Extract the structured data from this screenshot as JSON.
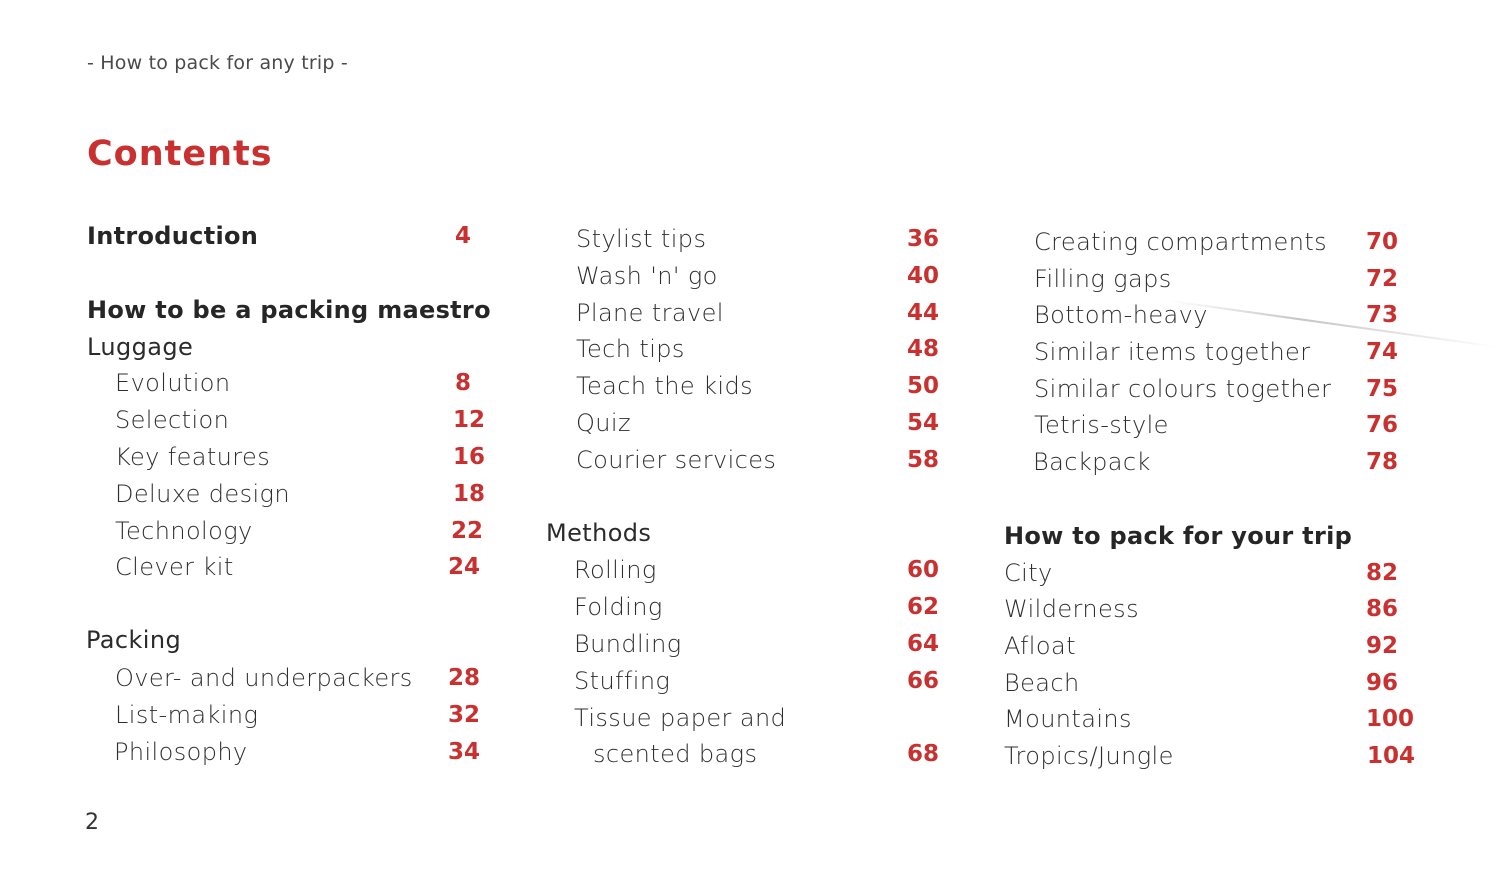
{
  "running_head": "- How to pack for any trip -",
  "title": "Contents",
  "folio": "2",
  "col1": {
    "introduction": {
      "label": "Introduction",
      "page": "4"
    },
    "maestro_heading": "How to be a packing maestro",
    "luggage_heading": "Luggage",
    "luggage_items": [
      {
        "label": "Evolution",
        "page": "8"
      },
      {
        "label": "Selection",
        "page": "12"
      },
      {
        "label": "Key features",
        "page": "16"
      },
      {
        "label": "Deluxe design",
        "page": "18"
      },
      {
        "label": "Technology",
        "page": "22"
      },
      {
        "label": "Clever kit",
        "page": "24"
      }
    ],
    "packing_heading": "Packing",
    "packing_items": [
      {
        "label": "Over- and underpackers",
        "page": "28"
      },
      {
        "label": "List-making",
        "page": "32"
      },
      {
        "label": "Philosophy",
        "page": "34"
      }
    ]
  },
  "col2": {
    "items": [
      {
        "label": "Stylist tips",
        "page": "36"
      },
      {
        "label": "Wash 'n' go",
        "page": "40"
      },
      {
        "label": "Plane travel",
        "page": "44"
      },
      {
        "label": "Tech tips",
        "page": "48"
      },
      {
        "label": "Teach the kids",
        "page": "50"
      },
      {
        "label": "Quiz",
        "page": "54"
      },
      {
        "label": "Courier services",
        "page": "58"
      }
    ],
    "methods_heading": "Methods",
    "methods_items": [
      {
        "label": "Rolling",
        "page": "60"
      },
      {
        "label": "Folding",
        "page": "62"
      },
      {
        "label": "Bundling",
        "page": "64"
      },
      {
        "label": "Stuffing",
        "page": "66"
      }
    ],
    "tissue": {
      "line1": "Tissue paper and",
      "line2": "scented bags",
      "page": "68"
    }
  },
  "col3": {
    "items": [
      {
        "label": "Creating compartments",
        "page": "70"
      },
      {
        "label": "Filling gaps",
        "page": "72"
      },
      {
        "label": "Bottom-heavy",
        "page": "73"
      },
      {
        "label": "Similar items together",
        "page": "74"
      },
      {
        "label": "Similar colours together",
        "page": "75"
      },
      {
        "label": "Tetris-style",
        "page": "76"
      },
      {
        "label": "Backpack",
        "page": "78"
      }
    ],
    "trip_heading": "How to pack for your trip",
    "trip_items": [
      {
        "label": "City",
        "page": "82"
      },
      {
        "label": "Wilderness",
        "page": "86"
      },
      {
        "label": "Afloat",
        "page": "92"
      },
      {
        "label": "Beach",
        "page": "96"
      },
      {
        "label": "Mountains",
        "page": "100"
      },
      {
        "label": "Tropics/Jungle",
        "page": "104"
      }
    ]
  }
}
